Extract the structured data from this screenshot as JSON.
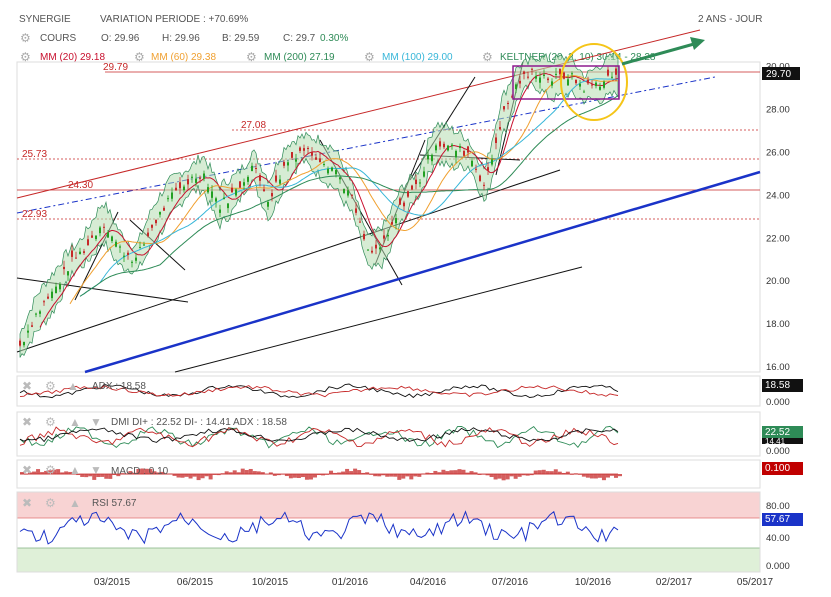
{
  "header": {
    "symbol": "SYNERGIE",
    "variation": "VARIATION PERIODE : +70.69%",
    "period": "2 ANS - JOUR"
  },
  "quote": {
    "label": "COURS",
    "open": "O: 29.96",
    "high": "H: 29.96",
    "low": "B: 29.59",
    "close": "C: 29.7",
    "change": "0.30%"
  },
  "legend": {
    "mm20": "MM (20) 29.18",
    "mm60": "MM (60) 29.38",
    "mm200": "MM (200) 27.19",
    "mm100": "MM (100) 29.00",
    "keltner": "KELTNER (20, 2, 10) 30.14 - 28.28"
  },
  "colors": {
    "mm20": "#c8102e",
    "mm60": "#f0a030",
    "mm200": "#2e8b57",
    "mm100": "#37b6d8",
    "keltner": "#2e8b57",
    "up_candle": "#22a022",
    "down_candle": "#c62828",
    "support": "#1a33c8",
    "rsi": "#1a33c8",
    "value_box": "#111111",
    "macd_box": "#c00000"
  },
  "annotations": {
    "level_2979": "29.79",
    "level_2708": "27.08",
    "level_2573": "25.73",
    "level_2430": "24.30",
    "level_2293": "22.93"
  },
  "indicators": {
    "adx": {
      "label": "ADX : 18.58",
      "value": "18.58",
      "zero": "0.000"
    },
    "dmi": {
      "label": "DMI DI+ : 22.52 DI- : 14.41 ADX : 18.58",
      "diplus": "22.52",
      "diminus": "14.41",
      "zero": "0.000"
    },
    "macd": {
      "label": "MACD : 0.10",
      "value": "0.100"
    },
    "rsi": {
      "label": "RSI 57.67",
      "value": "57.67",
      "t80": "80.00",
      "t40": "40.00",
      "t0": "0.000"
    }
  },
  "chart_data": {
    "type": "line",
    "title": "SYNERGIE",
    "ylim": [
      16,
      31
    ],
    "yticks": [
      "30.00",
      "29.70",
      "28.00",
      "26.00",
      "24.00",
      "22.00",
      "20.00",
      "18.00",
      "16.00"
    ],
    "x_labels": [
      "03/2015",
      "06/2015",
      "10/2015",
      "01/2016",
      "04/2016",
      "07/2016",
      "10/2016",
      "02/2017",
      "05/2017"
    ],
    "last_price": "29.70",
    "series": [
      {
        "name": "COURS",
        "values": [
          17.0,
          18.5,
          19.5,
          20.8,
          21.6,
          22.8,
          21.5,
          21.0,
          22.6,
          23.8,
          24.6,
          25.1,
          23.5,
          24.2,
          25.4,
          23.8,
          25.5,
          26.2,
          25.8,
          25.2,
          23.8,
          21.2,
          21.8,
          23.6,
          24.6,
          26.5,
          26.2,
          26.0,
          24.4,
          27.6,
          29.3,
          29.8,
          29.4,
          29.6,
          29.0,
          29.3,
          29.7
        ]
      }
    ]
  }
}
